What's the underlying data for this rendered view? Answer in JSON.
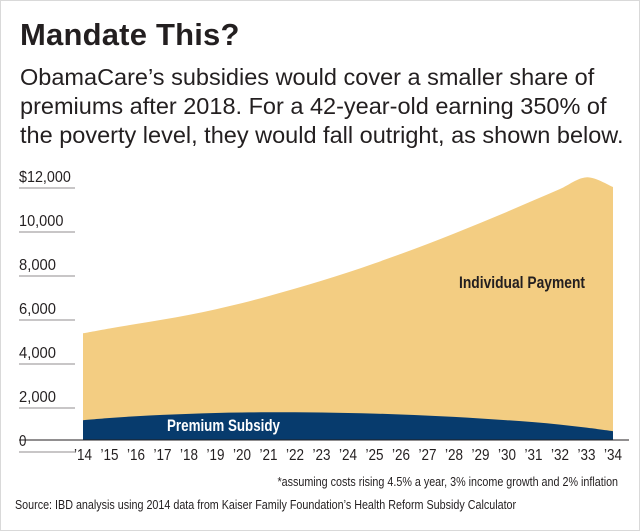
{
  "header": {
    "title": "Mandate This?",
    "subtitle_lines": [
      "ObamaCare’s subsidies would cover a smaller share of",
      "premiums after 2018. For a 42-year-old earning 350% of",
      "the poverty level, they would fall outright, as shown below."
    ]
  },
  "footnote": "*assuming costs rising 4.5% a year, 3% income growth and 2% inflation",
  "source": "Source: IBD analysis using 2014 data from Kaiser Family Foundation’s Health Reform Subsidy Calculator",
  "colors": {
    "individual_payment": "#f3cd82",
    "premium_subsidy": "#073b6d",
    "text": "#231f20",
    "grid": "#231f20"
  },
  "chart_data": {
    "type": "area",
    "stacked": true,
    "x": [
      "’14",
      "’15",
      "’16",
      "’17",
      "’18",
      "’19",
      "’20",
      "’21",
      "’22",
      "’23",
      "’24",
      "’25",
      "’26",
      "’27",
      "’28",
      "’29",
      "’30",
      "’31",
      "’32",
      "’33",
      "’34"
    ],
    "ylim": [
      0,
      12000
    ],
    "y_ticks": [
      0,
      2000,
      4000,
      6000,
      8000,
      10000,
      12000
    ],
    "y_tick_labels": [
      "0",
      "2,000",
      "4,000",
      "6,000",
      "8,000",
      "10,000",
      "$12,000"
    ],
    "series": [
      {
        "name": "Premium Subsidy",
        "color": "#073b6d",
        "values": [
          900,
          1000,
          1080,
          1140,
          1190,
          1230,
          1250,
          1260,
          1260,
          1250,
          1230,
          1200,
          1160,
          1110,
          1050,
          980,
          900,
          810,
          700,
          560,
          400
        ]
      },
      {
        "name": "Individual Payment",
        "color": "#f3cd82",
        "values": [
          3950,
          4070,
          4190,
          4330,
          4500,
          4710,
          4970,
          5280,
          5620,
          5990,
          6390,
          6830,
          7300,
          7800,
          8330,
          8890,
          9470,
          10080,
          10710,
          11380,
          11100
        ]
      }
    ]
  }
}
